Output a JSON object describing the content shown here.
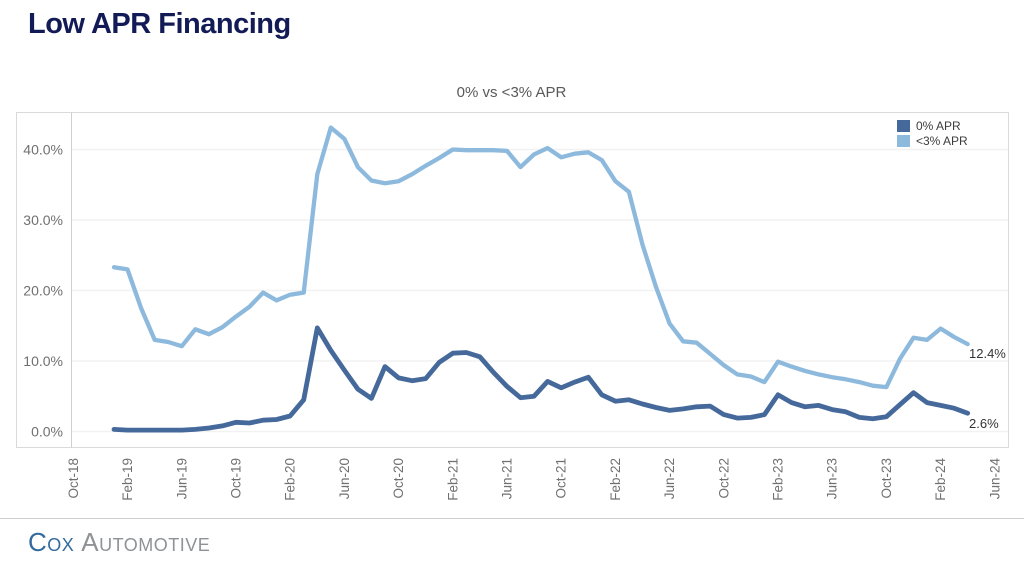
{
  "page": {
    "title": "Low APR Financing"
  },
  "footer": {
    "brand_cox": "Cox",
    "brand_automotive": "Automotive"
  },
  "chart_data": {
    "type": "line",
    "title": "0% vs <3% APR",
    "grid": "horizontal",
    "legend_position": "top-right",
    "ylim": [
      0,
      45
    ],
    "y_axis_ticks": [
      "0.0%",
      "10.0%",
      "20.0%",
      "30.0%",
      "40.0%"
    ],
    "x_axis_ticks": [
      "Oct-18",
      "Feb-19",
      "Jun-19",
      "Oct-19",
      "Feb-20",
      "Jun-20",
      "Oct-20",
      "Feb-21",
      "Jun-21",
      "Oct-21",
      "Feb-22",
      "Jun-22",
      "Oct-22",
      "Feb-23",
      "Jun-23",
      "Oct-23",
      "Feb-24",
      "Jun-24"
    ],
    "x": [
      "Jan-19",
      "Feb-19",
      "Mar-19",
      "Apr-19",
      "May-19",
      "Jun-19",
      "Jul-19",
      "Aug-19",
      "Sep-19",
      "Oct-19",
      "Nov-19",
      "Dec-19",
      "Jan-20",
      "Feb-20",
      "Mar-20",
      "Apr-20",
      "May-20",
      "Jun-20",
      "Jul-20",
      "Aug-20",
      "Sep-20",
      "Oct-20",
      "Nov-20",
      "Dec-20",
      "Jan-21",
      "Feb-21",
      "Mar-21",
      "Apr-21",
      "May-21",
      "Jun-21",
      "Jul-21",
      "Aug-21",
      "Sep-21",
      "Oct-21",
      "Nov-21",
      "Dec-21",
      "Jan-22",
      "Feb-22",
      "Mar-22",
      "Apr-22",
      "May-22",
      "Jun-22",
      "Jul-22",
      "Aug-22",
      "Sep-22",
      "Oct-22",
      "Nov-22",
      "Dec-22",
      "Jan-23",
      "Feb-23",
      "Mar-23",
      "Apr-23",
      "May-23",
      "Jun-23",
      "Jul-23",
      "Aug-23",
      "Sep-23",
      "Oct-23",
      "Nov-23",
      "Dec-23",
      "Jan-24",
      "Feb-24",
      "Mar-24",
      "Apr-24"
    ],
    "series": [
      {
        "name": "0% APR",
        "color": "#46699b",
        "end_label": "2.6%",
        "values": [
          0.3,
          0.2,
          0.2,
          0.2,
          0.2,
          0.2,
          0.3,
          0.5,
          0.8,
          1.3,
          1.2,
          1.6,
          1.7,
          2.2,
          4.5,
          14.7,
          11.5,
          8.7,
          6.0,
          4.7,
          9.2,
          7.6,
          7.2,
          7.5,
          9.8,
          11.1,
          11.2,
          10.6,
          8.4,
          6.4,
          4.8,
          5.0,
          7.1,
          6.2,
          7.0,
          7.7,
          5.2,
          4.3,
          4.5,
          3.9,
          3.4,
          3.0,
          3.2,
          3.5,
          3.6,
          2.4,
          1.9,
          2.0,
          2.4,
          5.2,
          4.1,
          3.5,
          3.7,
          3.1,
          2.8,
          2.0,
          1.8,
          2.1,
          3.8,
          5.5,
          4.1,
          3.7,
          3.3,
          2.6
        ]
      },
      {
        "name": "<3% APR",
        "color": "#8db9dd",
        "end_label": "12.4%",
        "values": [
          23.3,
          23.0,
          17.5,
          13.0,
          12.7,
          12.1,
          14.5,
          13.8,
          14.8,
          16.3,
          17.7,
          19.7,
          18.6,
          19.4,
          19.7,
          36.5,
          43.1,
          41.5,
          37.5,
          35.6,
          35.2,
          35.5,
          36.5,
          37.7,
          38.8,
          40.0,
          39.9,
          39.9,
          39.9,
          39.8,
          37.5,
          39.3,
          40.2,
          38.9,
          39.4,
          39.6,
          38.5,
          35.5,
          34.0,
          26.5,
          20.5,
          15.3,
          12.8,
          12.6,
          11.0,
          9.4,
          8.1,
          7.8,
          7.0,
          9.9,
          9.2,
          8.6,
          8.1,
          7.7,
          7.4,
          7.0,
          6.5,
          6.3,
          10.3,
          13.3,
          13.0,
          14.6,
          13.4,
          12.4
        ]
      }
    ]
  }
}
